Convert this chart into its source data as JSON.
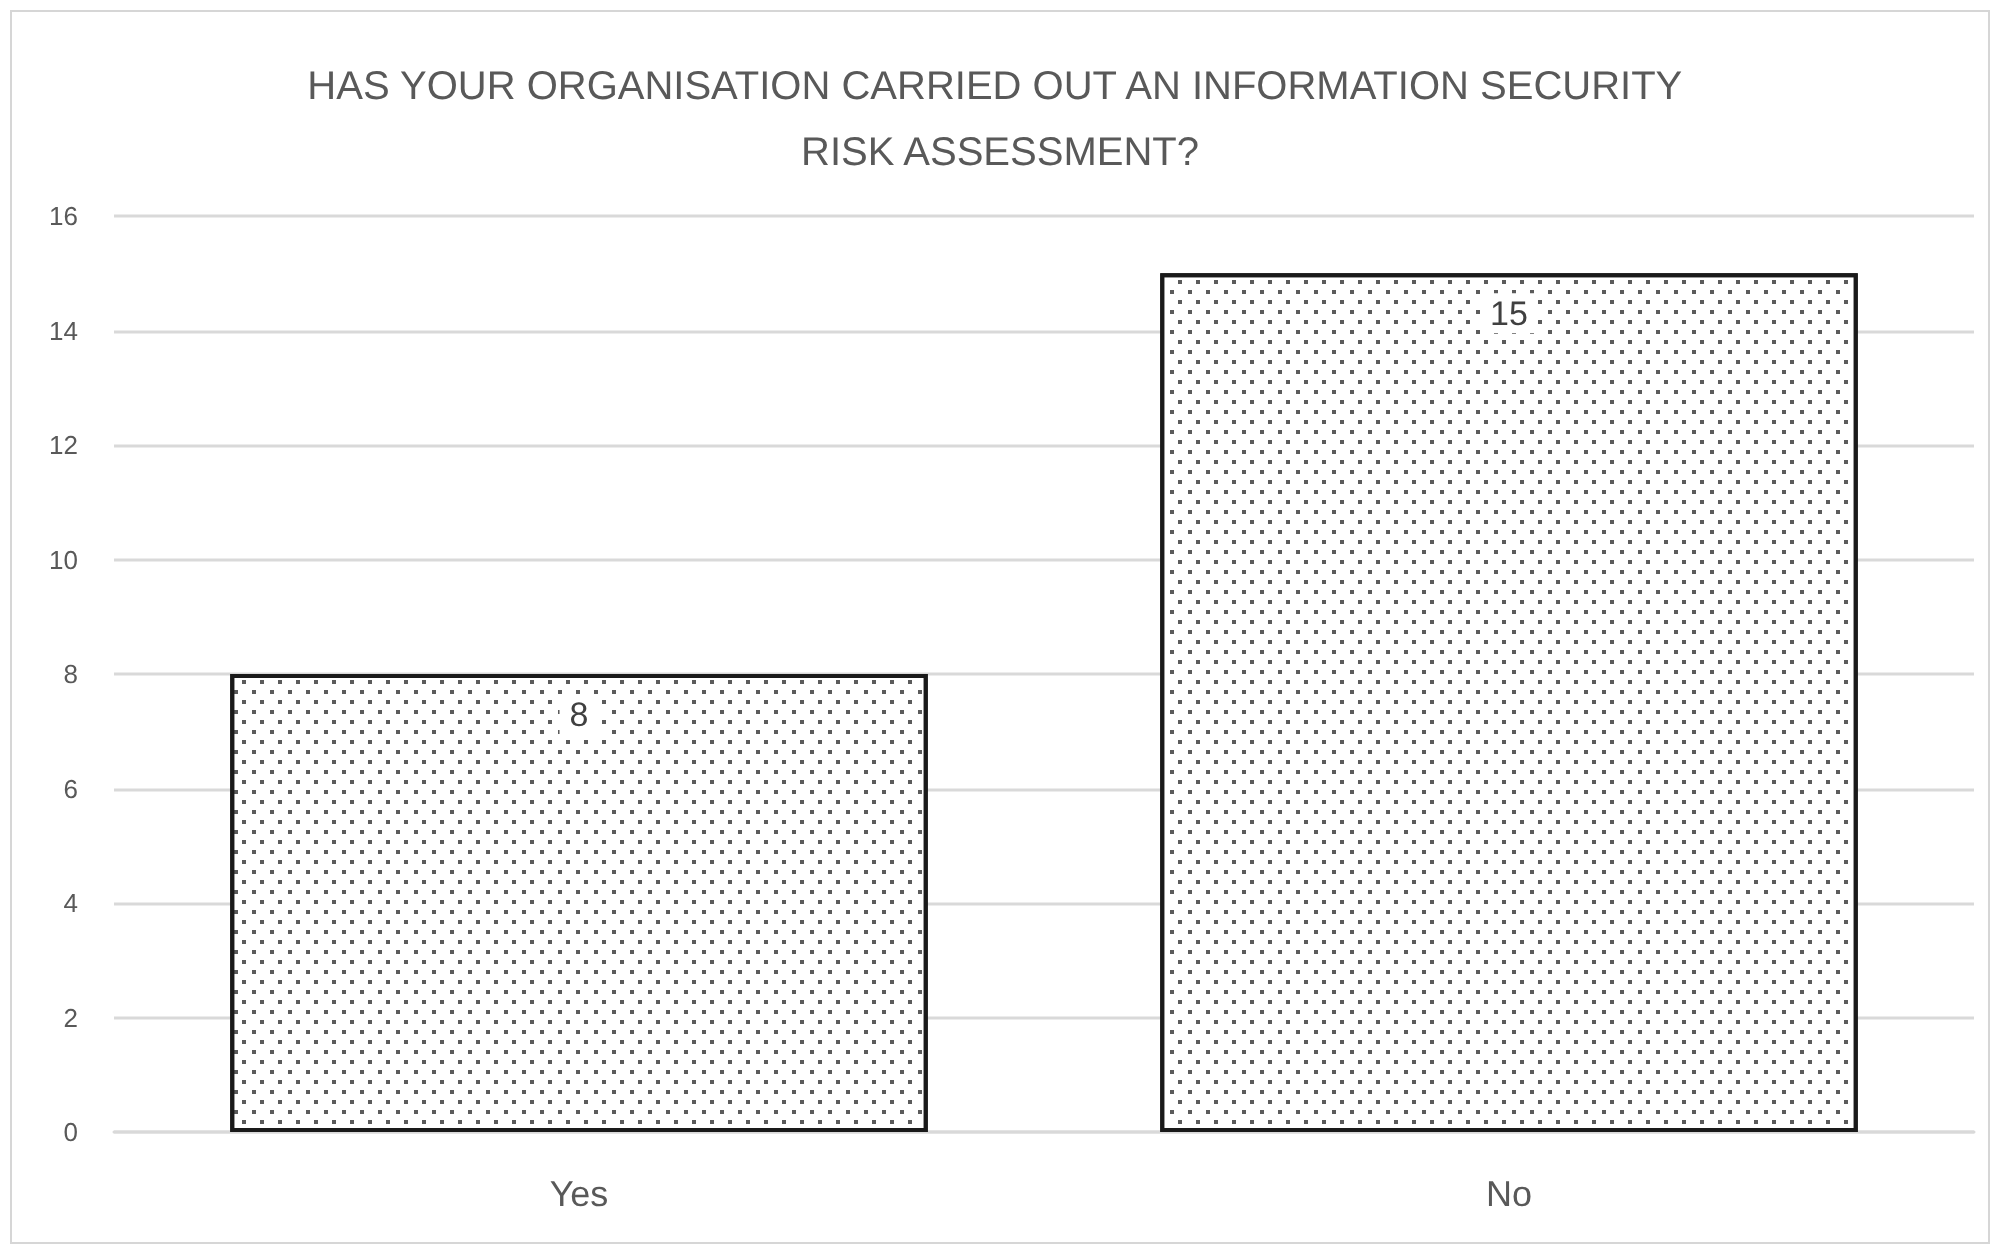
{
  "chart_data": {
    "type": "bar",
    "title": "HAS YOUR ORGANISATION CARRIED OUT AN INFORMATION SECURITY RISK ASSESSMENT?",
    "categories": [
      "Yes",
      "No"
    ],
    "values": [
      8,
      15
    ],
    "color": "#ffffff",
    "ylim": [
      0,
      16
    ],
    "yticks": [
      0,
      2,
      4,
      6,
      8,
      10,
      12,
      14,
      16
    ],
    "grid": "y",
    "data_labels": true
  }
}
